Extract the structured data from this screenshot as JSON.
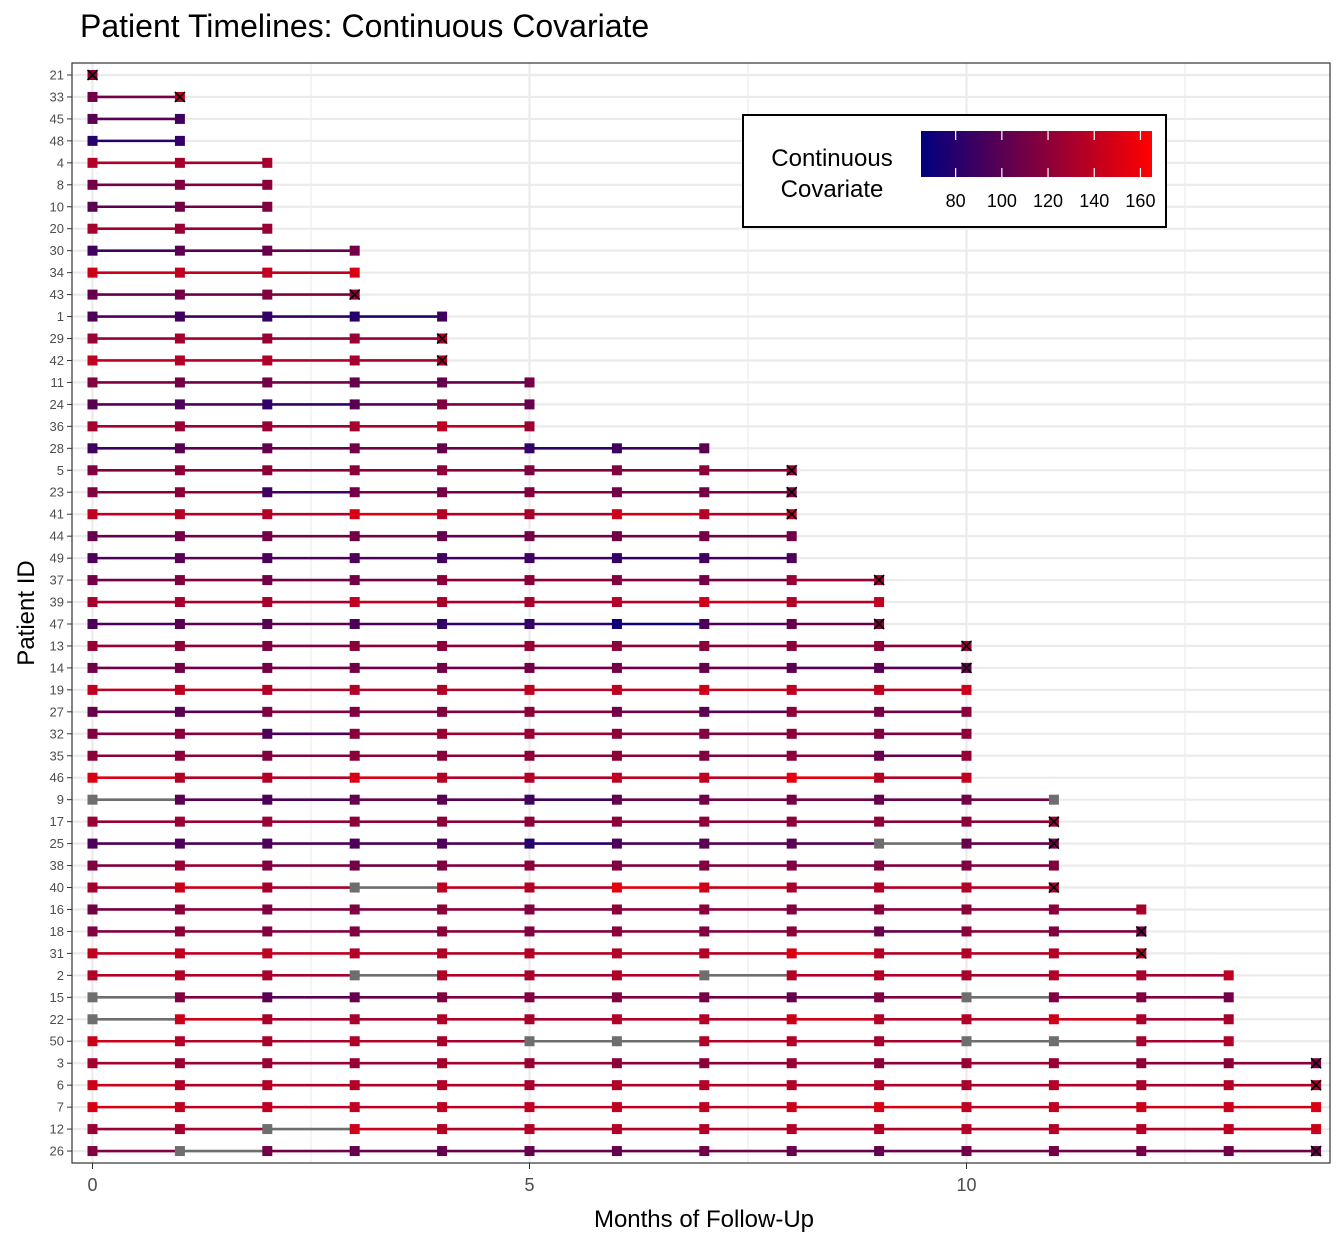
{
  "chart_data": {
    "type": "line",
    "title": "Patient Timelines: Continuous Covariate",
    "xlabel": "Months of Follow-Up",
    "ylabel": "Patient ID",
    "xlim": [
      0,
      14
    ],
    "x_ticks": [
      "0",
      "5",
      "10"
    ],
    "x_tick_values": [
      0,
      5,
      10
    ],
    "grid": true,
    "legend": {
      "title": "Continuous\nCovariate",
      "position": "top-right",
      "ticks": [
        "80",
        "100",
        "120",
        "140",
        "160"
      ],
      "tick_values": [
        80,
        100,
        120,
        140,
        160
      ],
      "range": [
        65,
        165
      ],
      "color_low": "#00007F",
      "color_high": "#FF0000",
      "na_color": "#6E6E6E"
    },
    "marker_event_symbol": "x",
    "patients": [
      {
        "id": "21",
        "values": [
          120
        ],
        "event": true
      },
      {
        "id": "33",
        "values": [
          110,
          140
        ],
        "event": true
      },
      {
        "id": "45",
        "values": [
          100,
          90
        ],
        "event": false
      },
      {
        "id": "48",
        "values": [
          80,
          85
        ],
        "event": false
      },
      {
        "id": "4",
        "values": [
          135,
          130,
          130
        ],
        "event": false
      },
      {
        "id": "8",
        "values": [
          110,
          115,
          120
        ],
        "event": false
      },
      {
        "id": "10",
        "values": [
          100,
          110,
          115
        ],
        "event": false
      },
      {
        "id": "20",
        "values": [
          130,
          125,
          125
        ],
        "event": false
      },
      {
        "id": "30",
        "values": [
          90,
          100,
          105,
          110
        ],
        "event": false
      },
      {
        "id": "34",
        "values": [
          145,
          140,
          140,
          150
        ],
        "event": false
      },
      {
        "id": "43",
        "values": [
          105,
          110,
          115,
          120
        ],
        "event": true
      },
      {
        "id": "1",
        "values": [
          95,
          90,
          85,
          80,
          90
        ],
        "event": false
      },
      {
        "id": "29",
        "values": [
          125,
          130,
          125,
          125,
          130
        ],
        "event": true
      },
      {
        "id": "42",
        "values": [
          140,
          135,
          135,
          130,
          130
        ],
        "event": true
      },
      {
        "id": "11",
        "values": [
          115,
          110,
          110,
          105,
          105,
          110
        ],
        "event": false
      },
      {
        "id": "24",
        "values": [
          100,
          95,
          85,
          100,
          115,
          105
        ],
        "event": false
      },
      {
        "id": "36",
        "values": [
          130,
          125,
          125,
          130,
          140,
          125
        ],
        "event": false
      },
      {
        "id": "28",
        "values": [
          90,
          100,
          105,
          110,
          105,
          85,
          90,
          100
        ],
        "event": false
      },
      {
        "id": "5",
        "values": [
          115,
          120,
          120,
          120,
          120,
          115,
          115,
          120,
          125
        ],
        "event": true
      },
      {
        "id": "23",
        "values": [
          115,
          120,
          90,
          110,
          110,
          115,
          110,
          110,
          115
        ],
        "event": true
      },
      {
        "id": "41",
        "values": [
          140,
          135,
          135,
          150,
          135,
          130,
          145,
          135,
          140
        ],
        "event": true
      },
      {
        "id": "44",
        "values": [
          105,
          110,
          110,
          110,
          105,
          110,
          110,
          110,
          110
        ],
        "event": false
      },
      {
        "id": "49",
        "values": [
          95,
          100,
          95,
          95,
          90,
          90,
          85,
          90,
          95
        ],
        "event": false
      },
      {
        "id": "37",
        "values": [
          110,
          115,
          110,
          110,
          120,
          120,
          115,
          110,
          125,
          130
        ],
        "event": true
      },
      {
        "id": "39",
        "values": [
          130,
          130,
          130,
          140,
          130,
          130,
          135,
          145,
          135,
          140
        ],
        "event": false
      },
      {
        "id": "47",
        "values": [
          95,
          100,
          100,
          95,
          85,
          85,
          70,
          95,
          105,
          120
        ],
        "event": true
      },
      {
        "id": "13",
        "values": [
          125,
          120,
          115,
          120,
          120,
          125,
          120,
          120,
          120,
          120,
          125
        ],
        "event": true
      },
      {
        "id": "14",
        "values": [
          110,
          110,
          110,
          110,
          110,
          110,
          110,
          105,
          100,
          100,
          105
        ],
        "event": true
      },
      {
        "id": "19",
        "values": [
          140,
          140,
          135,
          135,
          135,
          140,
          140,
          145,
          140,
          140,
          145
        ],
        "event": false
      },
      {
        "id": "27",
        "values": [
          105,
          100,
          115,
          115,
          115,
          120,
          110,
          100,
          120,
          110,
          120
        ],
        "event": false
      },
      {
        "id": "32",
        "values": [
          115,
          120,
          95,
          120,
          125,
          125,
          120,
          115,
          120,
          115,
          120
        ],
        "event": false
      },
      {
        "id": "35",
        "values": [
          120,
          120,
          115,
          120,
          120,
          120,
          120,
          115,
          120,
          105,
          125
        ],
        "event": false
      },
      {
        "id": "46",
        "values": [
          150,
          135,
          135,
          150,
          135,
          135,
          140,
          140,
          155,
          135,
          140
        ],
        "event": false
      },
      {
        "id": "9",
        "values": [
          null,
          100,
          95,
          105,
          100,
          90,
          105,
          110,
          110,
          105,
          110,
          null
        ],
        "event": false
      },
      {
        "id": "17",
        "values": [
          125,
          125,
          125,
          120,
          120,
          120,
          120,
          120,
          120,
          120,
          120,
          125
        ],
        "event": true
      },
      {
        "id": "25",
        "values": [
          95,
          95,
          95,
          95,
          95,
          80,
          95,
          100,
          100,
          null,
          105,
          110
        ],
        "event": true
      },
      {
        "id": "38",
        "values": [
          115,
          125,
          115,
          110,
          115,
          120,
          115,
          115,
          115,
          115,
          115,
          115
        ],
        "event": false
      },
      {
        "id": "40",
        "values": [
          130,
          145,
          130,
          null,
          140,
          135,
          155,
          145,
          130,
          135,
          135,
          130
        ],
        "event": true
      },
      {
        "id": "16",
        "values": [
          110,
          120,
          115,
          115,
          120,
          115,
          120,
          120,
          115,
          120,
          120,
          120,
          130
        ],
        "event": false
      },
      {
        "id": "18",
        "values": [
          115,
          120,
          115,
          115,
          120,
          115,
          120,
          115,
          120,
          105,
          120,
          115,
          110
        ],
        "event": true
      },
      {
        "id": "31",
        "values": [
          140,
          140,
          140,
          135,
          135,
          135,
          135,
          135,
          150,
          135,
          135,
          135,
          135
        ],
        "event": true
      },
      {
        "id": "2",
        "values": [
          135,
          135,
          130,
          null,
          135,
          130,
          135,
          null,
          135,
          135,
          130,
          135,
          130,
          140
        ],
        "event": false
      },
      {
        "id": "15",
        "values": [
          null,
          115,
          100,
          105,
          115,
          115,
          115,
          110,
          105,
          115,
          null,
          115,
          115,
          110
        ],
        "event": false
      },
      {
        "id": "22",
        "values": [
          null,
          145,
          130,
          130,
          135,
          130,
          135,
          135,
          145,
          135,
          135,
          145,
          130,
          130
        ],
        "event": false
      },
      {
        "id": "50",
        "values": [
          145,
          135,
          130,
          135,
          130,
          null,
          null,
          135,
          135,
          130,
          null,
          null,
          130,
          135
        ],
        "event": false
      },
      {
        "id": "3",
        "values": [
          130,
          125,
          125,
          125,
          130,
          125,
          120,
          120,
          125,
          120,
          125,
          125,
          120,
          120,
          115
        ],
        "event": true
      },
      {
        "id": "6",
        "values": [
          145,
          135,
          135,
          135,
          135,
          130,
          135,
          135,
          135,
          135,
          130,
          135,
          130,
          135,
          135
        ],
        "event": true
      },
      {
        "id": "7",
        "values": [
          150,
          140,
          140,
          140,
          140,
          140,
          140,
          140,
          145,
          150,
          140,
          140,
          145,
          145,
          150
        ],
        "event": false
      },
      {
        "id": "12",
        "values": [
          125,
          130,
          null,
          145,
          135,
          135,
          135,
          135,
          135,
          135,
          135,
          135,
          135,
          140,
          145
        ],
        "event": false
      },
      {
        "id": "26",
        "values": [
          115,
          null,
          110,
          105,
          105,
          105,
          105,
          110,
          105,
          105,
          110,
          110,
          110,
          110,
          110
        ],
        "event": true
      }
    ]
  }
}
